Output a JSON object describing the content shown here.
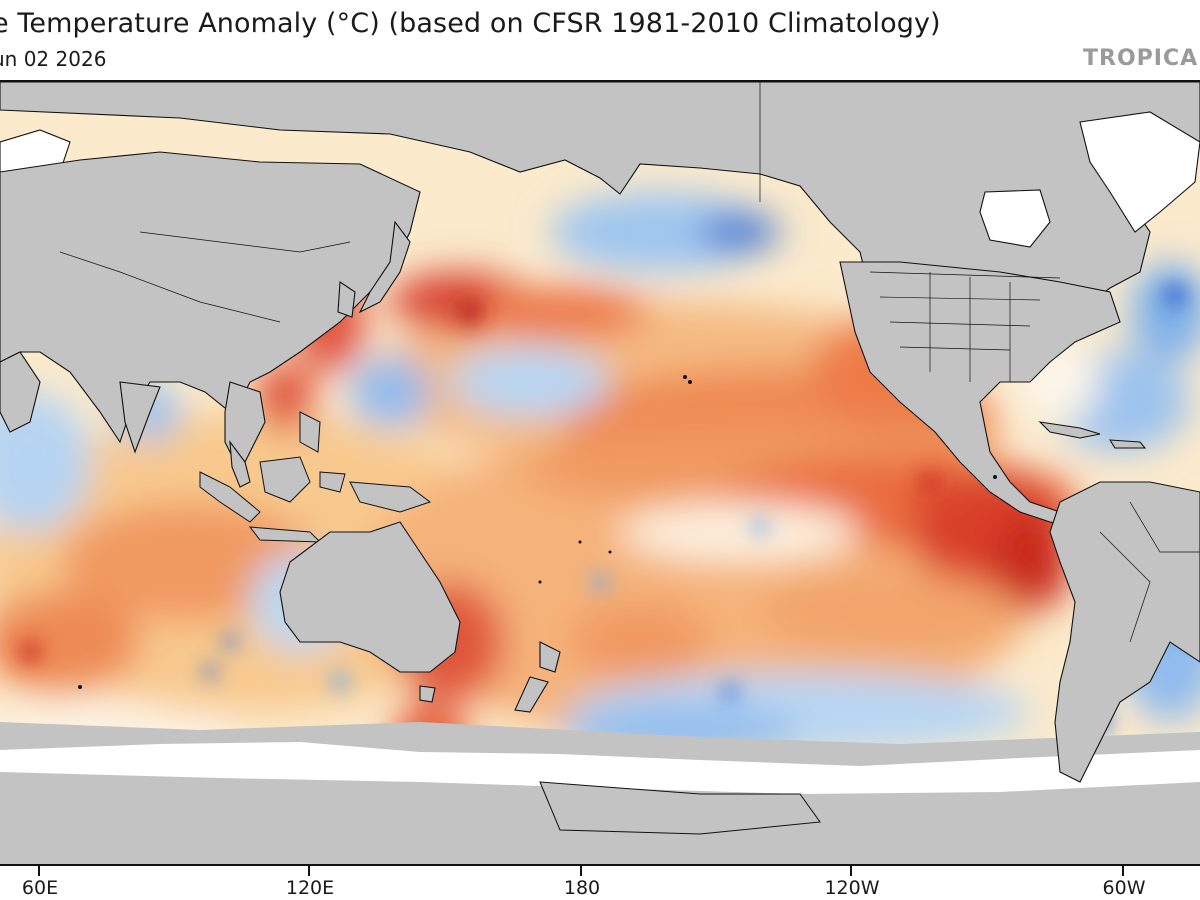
{
  "title": "e Temperature Anomaly (°C) (based on CFSR 1981-2010 Climatology)",
  "date": "un 02 2026",
  "brand": "TROPICA",
  "x_axis_ticks": [
    "60E",
    "120E",
    "180",
    "120W",
    "60W"
  ],
  "colors": {
    "land": "#c3c3c3",
    "ice": "#ffffff",
    "warm_strong": "#cc2a20",
    "warm_medium": "#ee7d45",
    "warm_light": "#f9d399",
    "neutral": "#fdf6ea",
    "cool_light": "#bcd8f3",
    "cool_medium": "#6eaae8",
    "cool_strong": "#2a5ec4",
    "coastline": "#111111"
  }
}
